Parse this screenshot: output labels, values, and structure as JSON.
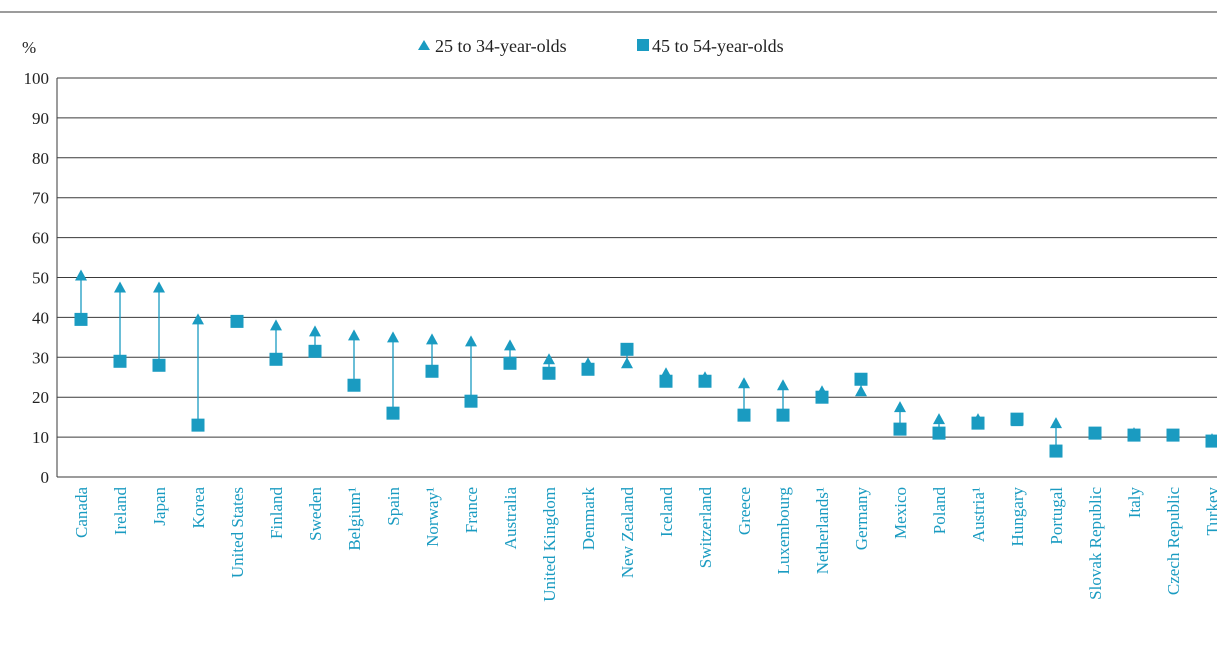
{
  "colors": {
    "marker": "#1a9bc1",
    "gridline": "#3a3a3a",
    "text": "#222222"
  },
  "chart_data": {
    "type": "scatter",
    "ylabel": "%",
    "ylim": [
      0,
      100
    ],
    "yticks": [
      0,
      10,
      20,
      30,
      40,
      50,
      60,
      70,
      80,
      90,
      100
    ],
    "grid": true,
    "legend": "top-center",
    "categories": [
      "Canada",
      "Ireland",
      "Japan",
      "Korea",
      "United States",
      "Finland",
      "Sweden",
      "Belgium¹",
      "Spain",
      "Norway¹",
      "France",
      "Australia",
      "United Kingdom",
      "Denmark",
      "New Zealand",
      "Iceland",
      "Switzerland",
      "Greece",
      "Luxembourg",
      "Netherlands¹",
      "Germany",
      "Mexico",
      "Poland",
      "Austria¹",
      "Hungary",
      "Portugal",
      "Slovak Republic",
      "Italy",
      "Czech Republic",
      "Turkey"
    ],
    "series": [
      {
        "name": "25 to 34-year-olds",
        "marker": "triangle",
        "values": [
          50.5,
          47.5,
          47.5,
          39.5,
          39,
          38,
          36.5,
          35.5,
          35,
          34.5,
          34,
          33,
          29.5,
          28.5,
          28.5,
          26,
          25,
          23.5,
          23,
          21.5,
          21.5,
          17.5,
          14.5,
          14.5,
          14,
          13.5,
          11,
          11,
          10.5,
          9.5
        ]
      },
      {
        "name": "45 to 54-year-olds",
        "marker": "square",
        "values": [
          39.5,
          29,
          28,
          13,
          39,
          29.5,
          31.5,
          23,
          16,
          26.5,
          19,
          28.5,
          26,
          27,
          32,
          24,
          24,
          15.5,
          15.5,
          20,
          24.5,
          12,
          11,
          13.5,
          14.5,
          6.5,
          11,
          10.5,
          10.5,
          9
        ]
      }
    ]
  }
}
